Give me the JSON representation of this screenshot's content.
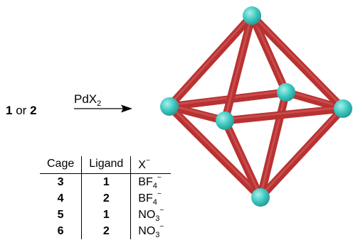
{
  "reaction": {
    "reactant_a": "1",
    "connector": "or",
    "reactant_b": "2",
    "reagent_base": "PdX",
    "reagent_sub": "2"
  },
  "table": {
    "headers": [
      "Cage",
      "Ligand",
      "X"
    ],
    "header_anion_sup": "−",
    "rows": [
      {
        "cage": "3",
        "ligand": "1",
        "anion_base": "BF",
        "anion_sub": "4",
        "anion_sup": "−"
      },
      {
        "cage": "4",
        "ligand": "2",
        "anion_base": "BF",
        "anion_sub": "4",
        "anion_sup": "−"
      },
      {
        "cage": "5",
        "ligand": "1",
        "anion_base": "NO",
        "anion_sub": "3",
        "anion_sup": "−"
      },
      {
        "cage": "6",
        "ligand": "2",
        "anion_base": "NO",
        "anion_sub": "3",
        "anion_sup": "−"
      }
    ]
  },
  "colors": {
    "rod": "#b83232",
    "rod_highlight": "#d96060",
    "node": "#3cc8c0",
    "node_highlight": "#a8f0ea"
  }
}
